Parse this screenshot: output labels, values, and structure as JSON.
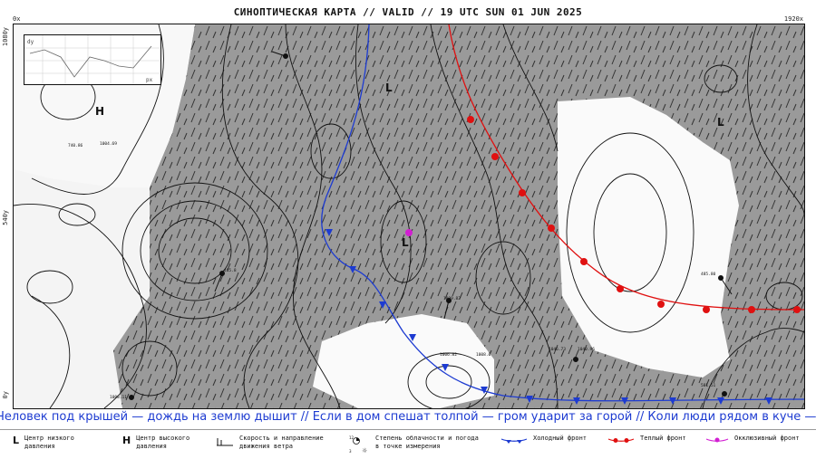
{
  "header": {
    "title": "СИНОПТИЧЕСКАЯ КАРТА // VALID // 19 UTC SUN 01 JUN 2025"
  },
  "axes": {
    "x_origin": "0x",
    "x_max": "1920x",
    "y_top": "1080y",
    "y_mid": "540y",
    "y_bottom": "0y"
  },
  "inset": {
    "ylabel": "dy",
    "xlabel": "px"
  },
  "centers": [
    {
      "symbol": "H",
      "type": "high"
    },
    {
      "symbol": "L",
      "type": "low"
    },
    {
      "symbol": "L",
      "type": "low"
    },
    {
      "symbol": "L",
      "type": "low"
    }
  ],
  "station_labels": [
    "740.86",
    "1004.69",
    "485.8",
    "1009.82",
    "1008.0",
    "1006.82",
    "485.80",
    "1046.73",
    "581.51",
    "1008.11",
    "1040.96"
  ],
  "ticker": {
    "text": "Человек под крышей — дождь на землю дышит // Если в дом спешат толпой — гром ударит за горой // Коли люди рядом в куче — дождь"
  },
  "legend": {
    "low": {
      "symbol": "L",
      "label": "Центр низкого давления"
    },
    "high": {
      "symbol": "H",
      "label": "Центр высокого давления"
    },
    "wind": {
      "label": "Скорость и направление движения ветра",
      "icon": "wind-barb-icon"
    },
    "cloud": {
      "label": "Степень облачности и погода в точке измерения",
      "icon": "station-model-icon"
    },
    "cold": {
      "label": "Холодный фронт",
      "color": "#1d3bd1"
    },
    "warm": {
      "label": "Теплый фронт",
      "color": "#e01010"
    },
    "occl": {
      "label": "Окклюзивный фронт",
      "color": "#d21ed2"
    }
  }
}
